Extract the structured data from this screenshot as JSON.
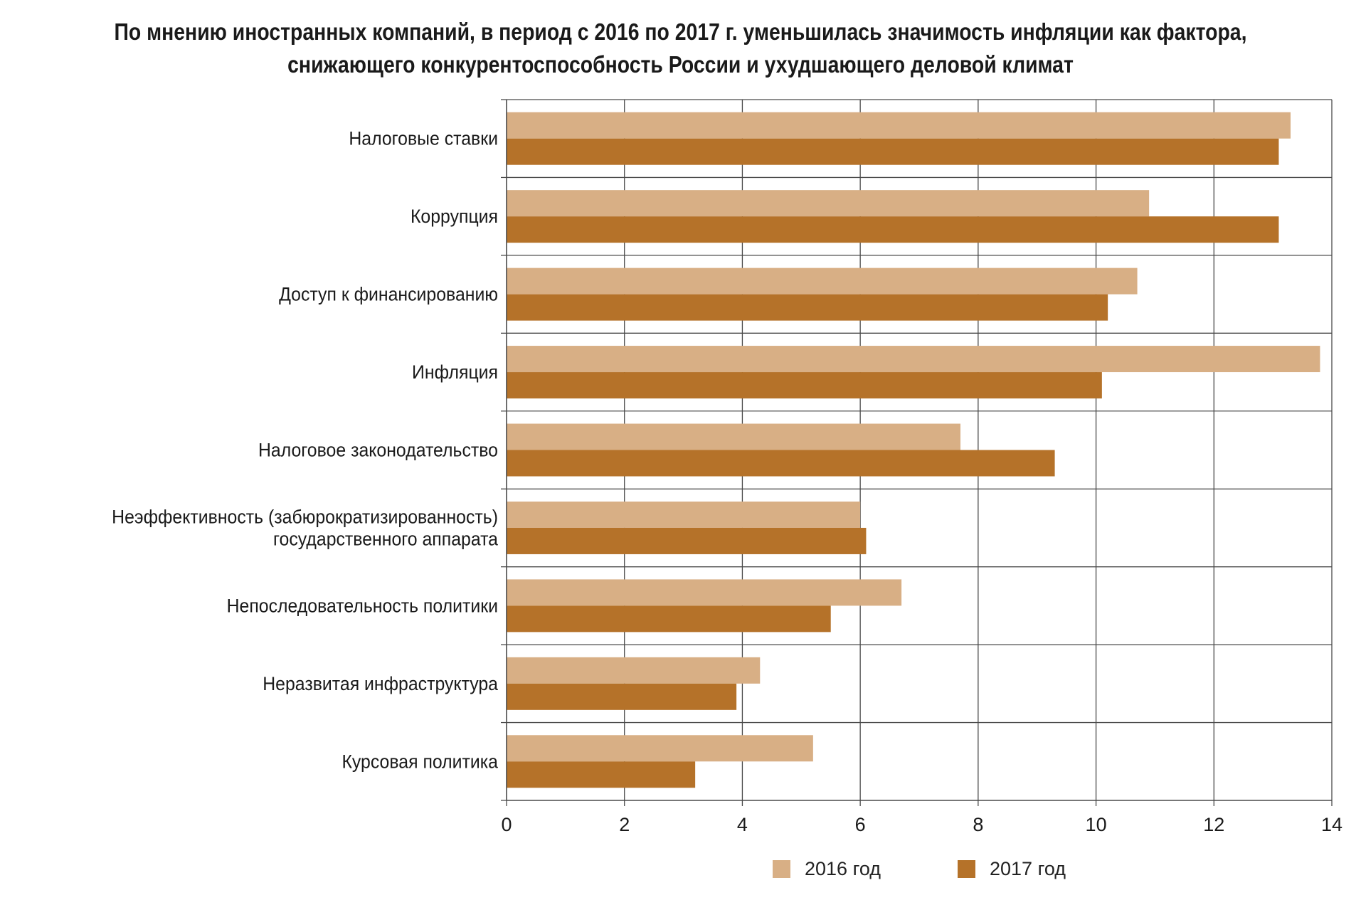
{
  "title_lines": [
    "По мнению иностранных компаний, в период с 2016 по 2017 г. уменьшилась значимость инфляции как фактора,",
    "снижающего конкурентоспособность России и ухудшающего деловой климат"
  ],
  "colors": {
    "series_2016": "#d8af85",
    "series_2017": "#b57229",
    "grid": "#4a4a4a",
    "text": "#1a1a1a"
  },
  "chart_data": {
    "type": "bar",
    "orientation": "horizontal",
    "title": "По мнению иностранных компаний, в период с 2016 по 2017 г. уменьшилась значимость инфляции как фактора, снижающего конкурентоспособность России и ухудшающего деловой климат",
    "categories": [
      [
        "Налоговые ставки"
      ],
      [
        "Коррупция"
      ],
      [
        "Доступ к финансированию"
      ],
      [
        "Инфляция"
      ],
      [
        "Налоговое законодательство"
      ],
      [
        "Неэффективность (забюрократизированность)",
        "государственного аппарата"
      ],
      [
        "Непоследовательность политики"
      ],
      [
        "Неразвитая инфраструктура"
      ],
      [
        "Курсовая политика"
      ]
    ],
    "series": [
      {
        "name": "2016 год",
        "values": [
          13.3,
          10.9,
          10.7,
          13.8,
          7.7,
          6.0,
          6.7,
          4.3,
          5.2
        ]
      },
      {
        "name": "2017 год",
        "values": [
          13.1,
          13.1,
          10.2,
          10.1,
          9.3,
          6.1,
          5.5,
          3.9,
          3.2
        ]
      }
    ],
    "xlim": [
      0,
      14
    ],
    "xticks": [
      0,
      2,
      4,
      6,
      8,
      10,
      12,
      14
    ],
    "xlabel": "",
    "ylabel": "",
    "grid": true,
    "legend_position": "bottom"
  }
}
